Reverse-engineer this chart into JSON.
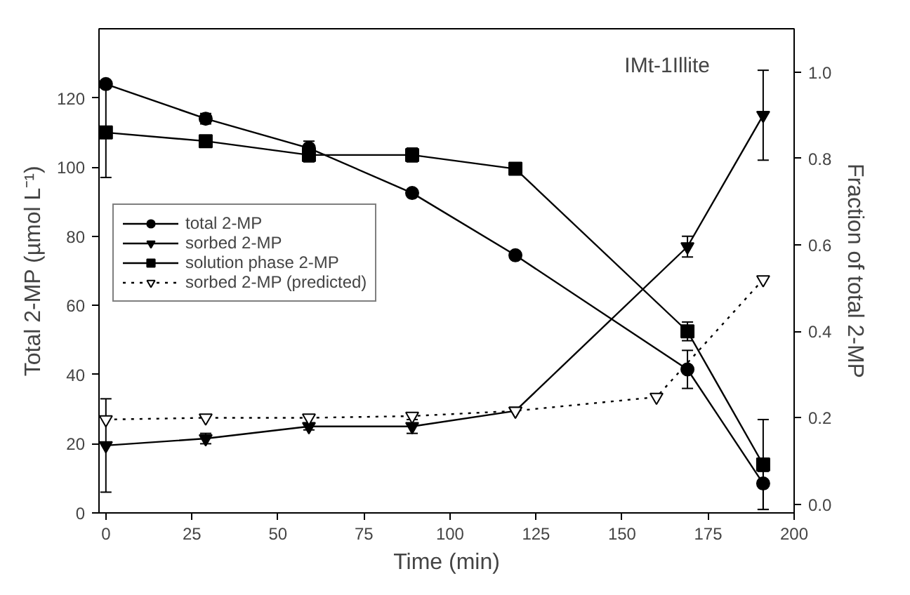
{
  "chart_data": {
    "type": "line",
    "xlabel": "Time (min)",
    "ylabel": "Total 2-MP (µmol L⁻¹)",
    "y2label": "Fraction of total 2-MP",
    "annotations": [
      "IMt-1Illite"
    ],
    "xlim": [
      -2,
      200
    ],
    "xticks": [
      0,
      25,
      50,
      75,
      100,
      125,
      150,
      175,
      200
    ],
    "ylim": [
      0,
      140
    ],
    "yticks": [
      0,
      20,
      40,
      60,
      80,
      100,
      120
    ],
    "y2lim": [
      -0.02,
      1.1
    ],
    "y2ticks": [
      {
        "value": 0,
        "label": "0.0"
      },
      {
        "value": 0.2,
        "label": "0.2"
      },
      {
        "value": 0.4,
        "label": "0.4"
      },
      {
        "value": 0.6,
        "label": "0.6"
      },
      {
        "value": 0.8,
        "label": "0.8"
      },
      {
        "value": 1,
        "label": "1.0"
      }
    ],
    "grid": false,
    "legend": "left",
    "line_style": "solid",
    "series": [
      {
        "name": "total 2-MP",
        "color": "#000000",
        "marker": "circle",
        "x": [
          0,
          29,
          59,
          89,
          119,
          169,
          191
        ],
        "values": [
          124,
          114,
          105.5,
          92.5,
          74.5,
          41.5,
          8.5
        ],
        "errors": [
          null,
          1.5,
          2,
          null,
          null,
          5.5,
          [
            1,
            12
          ]
        ]
      },
      {
        "name": "sorbed 2-MP",
        "color": "#000000",
        "marker": "triangle_down",
        "x": [
          0,
          29,
          59,
          89,
          119,
          169,
          191
        ],
        "values": [
          19.5,
          21.5,
          25,
          25,
          29.5,
          77,
          115
        ],
        "errors": [
          [
            6,
            33
          ],
          1.5,
          1,
          2,
          null,
          3,
          13
        ]
      },
      {
        "name": "solution phase 2-MP",
        "color": "#000000",
        "marker": "square",
        "x": [
          0,
          29,
          59,
          89,
          119,
          169,
          191
        ],
        "values": [
          110,
          107.5,
          103.5,
          103.5,
          99.5,
          52.5,
          14
        ],
        "errors": [
          13,
          null,
          2,
          2,
          null,
          2.7,
          [
            1,
            27
          ]
        ]
      },
      {
        "name": "sorbed 2-MP (predicted)",
        "color": "#000000",
        "marker": "triangle_down_open",
        "line_style": "dotted",
        "x": [
          0,
          29,
          59,
          89,
          119,
          160,
          191
        ],
        "values": [
          27,
          27.5,
          27.5,
          28,
          29.5,
          33.5,
          67.5
        ]
      }
    ]
  }
}
